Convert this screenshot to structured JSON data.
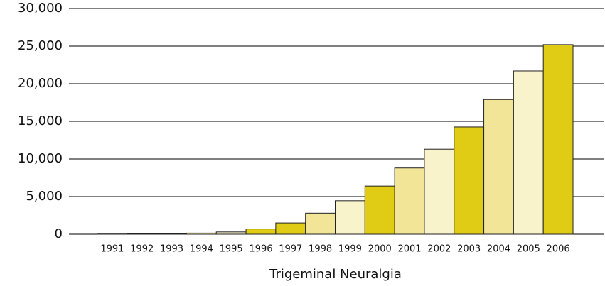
{
  "chart_data": {
    "type": "bar",
    "x_label": "Trigeminal Neuralgia",
    "categories": [
      "1991",
      "1992",
      "1993",
      "1994",
      "1995",
      "1996",
      "1997",
      "1998",
      "1999",
      "2000",
      "2001",
      "2002",
      "2003",
      "2004",
      "2005",
      "2006"
    ],
    "values": [
      30,
      50,
      80,
      150,
      300,
      700,
      1500,
      2800,
      4450,
      6400,
      8800,
      11300,
      14250,
      17900,
      21700,
      25200
    ],
    "colors": [
      "#f2e597",
      "#f9f3cc",
      "#e0cc14",
      "#f2e597",
      "#f9f3cc",
      "#e0cc14",
      "#e0cc14",
      "#f2e597",
      "#f9f3cc",
      "#e0cc14",
      "#f2e597",
      "#f9f3cc",
      "#e0cc14",
      "#f2e597",
      "#f9f3cc",
      "#e0cc14"
    ],
    "ylim": [
      0,
      30000
    ],
    "yticks": [
      0,
      {
        "value": 5000,
        "label": "5,000"
      },
      {
        "value": 10000,
        "label": "10,000"
      },
      {
        "value": 15000,
        "label": "15,000"
      },
      {
        "value": 20000,
        "label": "20,000"
      },
      {
        "value": 25000,
        "label": "25,000"
      },
      {
        "value": 30000,
        "label": "30,000"
      }
    ],
    "grid": true
  }
}
